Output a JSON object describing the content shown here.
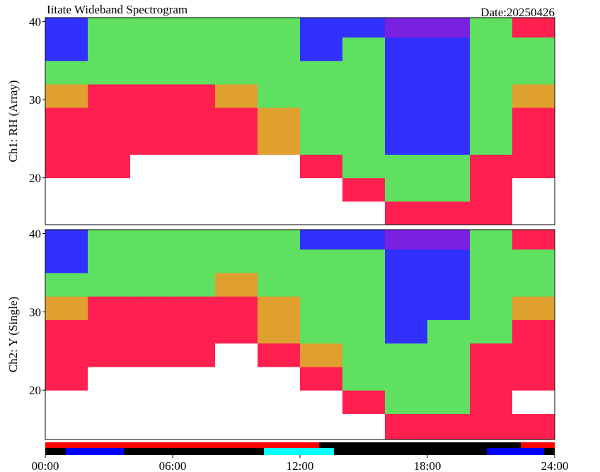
{
  "chart_data": [
    {
      "type": "heatmap",
      "title": "Iitate Wideband Spectrogram",
      "date_label": "Date:20250426",
      "y_label": "Ch1: RH (Array)",
      "xlim": [
        0,
        24
      ],
      "ylim": [
        14,
        40.5
      ],
      "yticks": [
        20,
        30,
        40
      ],
      "colors": [
        "#ffffff",
        "#ff2050",
        "#e0a030",
        "#60e060",
        "#3030ff",
        "#7a20e0"
      ],
      "x_bins": [
        0,
        2,
        4,
        6,
        8,
        10,
        12,
        14,
        16,
        18,
        20,
        22,
        24
      ],
      "y_bins": [
        14,
        17,
        20,
        23,
        26,
        29,
        32,
        35,
        38,
        40.5
      ],
      "z": [
        [
          0,
          0,
          0,
          0,
          0,
          0,
          0,
          0,
          1,
          1,
          1,
          0
        ],
        [
          0,
          0,
          0,
          0,
          0,
          0,
          0,
          1,
          3,
          3,
          1,
          0
        ],
        [
          1,
          1,
          0,
          0,
          0,
          0,
          1,
          3,
          3,
          3,
          1,
          1
        ],
        [
          1,
          1,
          1,
          1,
          1,
          2,
          3,
          3,
          4,
          4,
          3,
          1
        ],
        [
          1,
          1,
          1,
          1,
          1,
          2,
          3,
          3,
          4,
          4,
          3,
          1
        ],
        [
          2,
          1,
          1,
          1,
          2,
          3,
          3,
          3,
          4,
          4,
          3,
          2
        ],
        [
          3,
          3,
          3,
          3,
          3,
          3,
          3,
          3,
          4,
          4,
          3,
          3
        ],
        [
          4,
          3,
          3,
          3,
          3,
          3,
          4,
          3,
          4,
          4,
          3,
          3
        ],
        [
          4,
          3,
          3,
          3,
          3,
          3,
          4,
          4,
          5,
          5,
          3,
          1
        ]
      ]
    },
    {
      "type": "heatmap",
      "y_label": "Ch2: Y (Single)",
      "xlim": [
        0,
        24
      ],
      "ylim": [
        13.7,
        40.5
      ],
      "yticks": [
        20,
        30,
        40
      ],
      "colors": [
        "#ffffff",
        "#ff2050",
        "#e0a030",
        "#60e060",
        "#3030ff",
        "#7a20e0"
      ],
      "x_bins": [
        0,
        2,
        4,
        6,
        8,
        10,
        12,
        14,
        16,
        18,
        20,
        22,
        24
      ],
      "y_bins": [
        13.7,
        17,
        20,
        23,
        26,
        29,
        32,
        35,
        38,
        40.5
      ],
      "z": [
        [
          0,
          0,
          0,
          0,
          0,
          0,
          0,
          0,
          1,
          1,
          1,
          1
        ],
        [
          0,
          0,
          0,
          0,
          0,
          0,
          0,
          1,
          3,
          3,
          1,
          0
        ],
        [
          1,
          0,
          0,
          0,
          0,
          0,
          1,
          3,
          3,
          3,
          1,
          1
        ],
        [
          1,
          1,
          1,
          1,
          0,
          1,
          2,
          3,
          3,
          3,
          1,
          1
        ],
        [
          1,
          1,
          1,
          1,
          1,
          2,
          3,
          3,
          4,
          3,
          3,
          1
        ],
        [
          2,
          1,
          1,
          1,
          1,
          2,
          3,
          3,
          4,
          4,
          3,
          2
        ],
        [
          3,
          3,
          3,
          3,
          2,
          3,
          3,
          3,
          4,
          4,
          3,
          3
        ],
        [
          4,
          3,
          3,
          3,
          3,
          3,
          3,
          3,
          4,
          4,
          3,
          3
        ],
        [
          4,
          3,
          3,
          3,
          3,
          3,
          4,
          4,
          5,
          5,
          3,
          1
        ]
      ]
    },
    {
      "type": "timeline",
      "xlim": [
        0,
        24
      ],
      "xticks": [
        {
          "value": 0,
          "label": "00:00"
        },
        {
          "value": 6,
          "label": "06:00"
        },
        {
          "value": 12,
          "label": "12:00"
        },
        {
          "value": 18,
          "label": "18:00"
        },
        {
          "value": 24,
          "label": "24:00"
        }
      ],
      "rows": [
        [
          {
            "start": 0,
            "end": 12.9,
            "color": "#ff0000"
          },
          {
            "start": 22.4,
            "end": 24,
            "color": "#ff0000"
          }
        ],
        [
          {
            "start": 0.95,
            "end": 3.7,
            "color": "#0000ff"
          },
          {
            "start": 10.3,
            "end": 13.6,
            "color": "#00ffff"
          },
          {
            "start": 20.8,
            "end": 23.5,
            "color": "#0000ff"
          }
        ]
      ]
    }
  ]
}
